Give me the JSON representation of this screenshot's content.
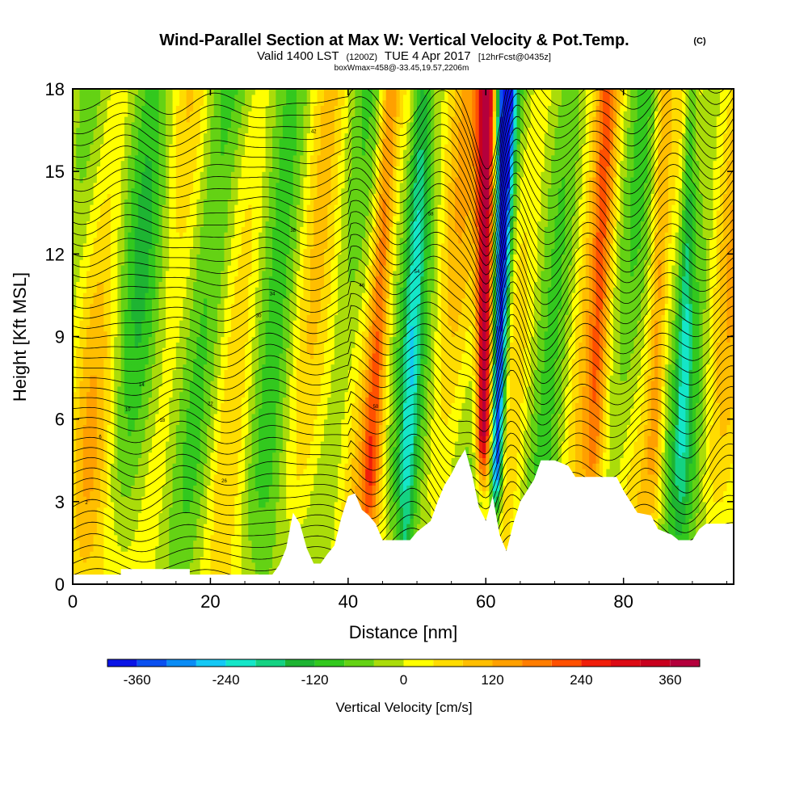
{
  "chart_data": {
    "type": "heatmap",
    "title": "Wind-Parallel Section at Max W: Vertical Velocity & Pot.Temp.",
    "title_mark": "(C)",
    "subtitle_parts": [
      "Valid 1400 LST",
      "(1200Z)",
      "TUE 4 Apr 2017",
      "[12hrFcst@0435z]"
    ],
    "subtitle2": "boxWmax=458@-33.45,19.57,2206m",
    "xlabel": "Distance [nm]",
    "ylabel": "Height [Kft MSL]",
    "xlim": [
      0,
      96
    ],
    "ylim": [
      0,
      18
    ],
    "x_ticks": [
      0,
      20,
      40,
      60,
      80
    ],
    "y_ticks": [
      0,
      3,
      6,
      9,
      12,
      15,
      18
    ],
    "colorbar": {
      "label": "Vertical Velocity [cm/s]",
      "levels": [
        -400,
        -360,
        -320,
        -280,
        -240,
        -200,
        -160,
        -120,
        -80,
        -40,
        0,
        40,
        80,
        120,
        160,
        200,
        240,
        280,
        320,
        360,
        400
      ],
      "colors": [
        "#0a14e6",
        "#0a50f0",
        "#0a8cf5",
        "#14c8f5",
        "#14e6c8",
        "#14d282",
        "#1eb432",
        "#32c81e",
        "#64d214",
        "#aadc0a",
        "#ffff00",
        "#ffdc00",
        "#ffbe00",
        "#ffa000",
        "#ff7d00",
        "#ff5000",
        "#f01e0a",
        "#dc0a14",
        "#c8001e",
        "#b4003c"
      ],
      "tick_labels": [
        -360,
        -240,
        -120,
        0,
        120,
        240,
        360
      ]
    },
    "terrain": [
      [
        0,
        0.35
      ],
      [
        7,
        0.35
      ],
      [
        7,
        0.55
      ],
      [
        17,
        0.55
      ],
      [
        17,
        0.35
      ],
      [
        29,
        0.35
      ],
      [
        30,
        0.7
      ],
      [
        31,
        1.3
      ],
      [
        32,
        2.6
      ],
      [
        33,
        2.2
      ],
      [
        34,
        1.3
      ],
      [
        35,
        0.75
      ],
      [
        36,
        0.75
      ],
      [
        37,
        1.1
      ],
      [
        38,
        1.4
      ],
      [
        39,
        2.4
      ],
      [
        40,
        3.2
      ],
      [
        41,
        3.3
      ],
      [
        42,
        2.7
      ],
      [
        43,
        2.5
      ],
      [
        44,
        2.2
      ],
      [
        45,
        1.6
      ],
      [
        49,
        1.6
      ],
      [
        50,
        1.9
      ],
      [
        52,
        2.3
      ],
      [
        53,
        3.0
      ],
      [
        54,
        3.6
      ],
      [
        55,
        4.0
      ],
      [
        56,
        4.5
      ],
      [
        57,
        4.9
      ],
      [
        58,
        4.0
      ],
      [
        59,
        2.8
      ],
      [
        60,
        2.3
      ],
      [
        61,
        3.2
      ],
      [
        62,
        1.8
      ],
      [
        63,
        1.2
      ],
      [
        64,
        2.2
      ],
      [
        65,
        3.0
      ],
      [
        67,
        3.8
      ],
      [
        68,
        4.5
      ],
      [
        70,
        4.5
      ],
      [
        72,
        4.3
      ],
      [
        73,
        3.9
      ],
      [
        79,
        3.9
      ],
      [
        80,
        3.4
      ],
      [
        81,
        3.0
      ],
      [
        82,
        2.6
      ],
      [
        84,
        2.5
      ],
      [
        85,
        2.0
      ],
      [
        87,
        1.8
      ],
      [
        88,
        1.6
      ],
      [
        90,
        1.6
      ],
      [
        91,
        2.0
      ],
      [
        92,
        2.2
      ],
      [
        96,
        2.2
      ]
    ],
    "updraft_core": {
      "x_top": 60.2,
      "x_bottom": 59.5,
      "peak_cm_s": 400,
      "y_bottom": 3.0
    },
    "downdraft_core": {
      "x_top": 63.0,
      "x_bottom": 61.5,
      "peak_cm_s": -400,
      "y_bottom": 1.5
    },
    "theta_contour_labels": [
      "2",
      "6",
      "10",
      "14",
      "18",
      "22",
      "26",
      "30",
      "34",
      "38",
      "42",
      "46",
      "50",
      "54",
      "58"
    ]
  }
}
